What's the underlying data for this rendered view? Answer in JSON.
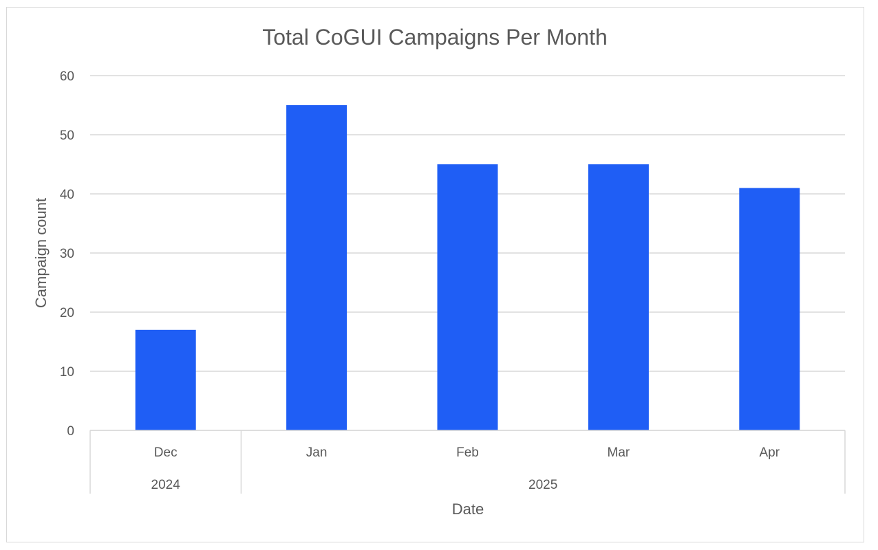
{
  "chart_data": {
    "type": "bar",
    "title": "Total CoGUI Campaigns Per Month",
    "xlabel": "Date",
    "ylabel": "Campaign count",
    "categories": [
      "Dec",
      "Jan",
      "Feb",
      "Mar",
      "Apr"
    ],
    "category_groups": [
      {
        "label": "2024",
        "categories": [
          "Dec"
        ]
      },
      {
        "label": "2025",
        "categories": [
          "Jan",
          "Feb",
          "Mar",
          "Apr"
        ]
      }
    ],
    "values": [
      17,
      55,
      45,
      45,
      41
    ],
    "ylim": [
      0,
      60
    ],
    "yticks": [
      0,
      10,
      20,
      30,
      40,
      50,
      60
    ],
    "bar_color": "#1f5ef5",
    "grid": true,
    "legend": "none"
  }
}
